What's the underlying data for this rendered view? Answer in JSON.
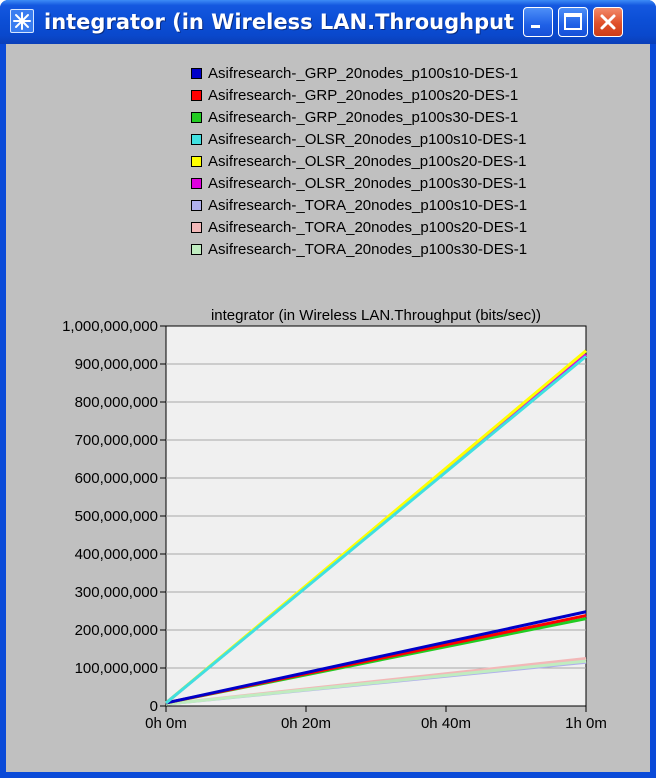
{
  "window": {
    "title": "integrator (in Wireless LAN.Throughput...",
    "icon": "star-burst-icon",
    "buttons": [
      "minimize-icon",
      "maximize-icon",
      "close-icon"
    ]
  },
  "colors": {
    "titlebar": "#0a4ad8",
    "client_bg": "#c0c0c0",
    "plot_bg": "#f0f0f0",
    "close_button": "#e0502a"
  },
  "legend": {
    "items": [
      {
        "label": "Asifresearch-_GRP_20nodes_p100s10-DES-1",
        "color": "#0000c8"
      },
      {
        "label": "Asifresearch-_GRP_20nodes_p100s20-DES-1",
        "color": "#ff0000"
      },
      {
        "label": "Asifresearch-_GRP_20nodes_p100s30-DES-1",
        "color": "#22cc22"
      },
      {
        "label": "Asifresearch-_OLSR_20nodes_p100s10-DES-1",
        "color": "#40e0e0"
      },
      {
        "label": "Asifresearch-_OLSR_20nodes_p100s20-DES-1",
        "color": "#ffff00"
      },
      {
        "label": "Asifresearch-_OLSR_20nodes_p100s30-DES-1",
        "color": "#e000e0"
      },
      {
        "label": "Asifresearch-_TORA_20nodes_p100s10-DES-1",
        "color": "#b0b0ec"
      },
      {
        "label": "Asifresearch-_TORA_20nodes_p100s20-DES-1",
        "color": "#f2b8b8"
      },
      {
        "label": "Asifresearch-_TORA_20nodes_p100s30-DES-1",
        "color": "#c0ecc0"
      }
    ]
  },
  "chart_data": {
    "type": "line",
    "title": "integrator (in Wireless LAN.Throughput (bits/sec))",
    "xlabel": "",
    "ylabel": "",
    "x": [
      0,
      60
    ],
    "x_ticks": [
      "0h 0m",
      "0h 20m",
      "0h 40m",
      "1h 0m"
    ],
    "x_tick_values": [
      0,
      20,
      40,
      60
    ],
    "xlim": [
      0,
      60
    ],
    "ylim": [
      0,
      1000000000
    ],
    "y_ticks": [
      "0",
      "100,000,000",
      "200,000,000",
      "300,000,000",
      "400,000,000",
      "500,000,000",
      "600,000,000",
      "700,000,000",
      "800,000,000",
      "900,000,000",
      "1,000,000,000"
    ],
    "y_tick_values": [
      0,
      100000000,
      200000000,
      300000000,
      400000000,
      500000000,
      600000000,
      700000000,
      800000000,
      900000000,
      1000000000
    ],
    "grid": true,
    "series": [
      {
        "name": "Asifresearch-_TORA_20nodes_p100s10-DES-1",
        "color": "#b0b0ec",
        "values": [
          5000000,
          115000000
        ]
      },
      {
        "name": "Asifresearch-_TORA_20nodes_p100s20-DES-1",
        "color": "#f2b8b8",
        "values": [
          5000000,
          125000000
        ]
      },
      {
        "name": "Asifresearch-_TORA_20nodes_p100s30-DES-1",
        "color": "#c0ecc0",
        "values": [
          5000000,
          118000000
        ]
      },
      {
        "name": "Asifresearch-_GRP_20nodes_p100s30-DES-1",
        "color": "#22cc22",
        "values": [
          8000000,
          230000000
        ]
      },
      {
        "name": "Asifresearch-_GRP_20nodes_p100s20-DES-1",
        "color": "#ff0000",
        "values": [
          8000000,
          238000000
        ]
      },
      {
        "name": "Asifresearch-_GRP_20nodes_p100s10-DES-1",
        "color": "#0000c8",
        "values": [
          8000000,
          248000000
        ]
      },
      {
        "name": "Asifresearch-_OLSR_20nodes_p100s30-DES-1",
        "color": "#e000e0",
        "values": [
          8000000,
          925000000
        ]
      },
      {
        "name": "Asifresearch-_OLSR_20nodes_p100s20-DES-1",
        "color": "#ffff00",
        "values": [
          8000000,
          935000000
        ]
      },
      {
        "name": "Asifresearch-_OLSR_20nodes_p100s10-DES-1",
        "color": "#40e0e0",
        "values": [
          8000000,
          920000000
        ]
      }
    ]
  }
}
